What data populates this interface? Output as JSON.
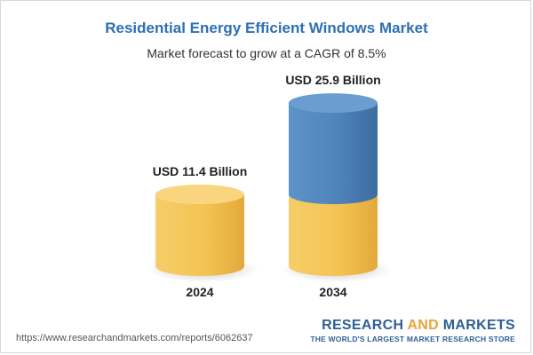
{
  "chart_data": {
    "type": "bar",
    "title": "Residential Energy Efficient Windows Market",
    "subtitle": "Market forecast to grow at a CAGR of 8.5%",
    "categories": [
      "2024",
      "2034"
    ],
    "values": [
      11.4,
      25.9
    ],
    "value_labels": [
      "USD 11.4 Billion",
      "USD 25.9 Billion"
    ],
    "unit": "USD Billion",
    "cagr": "8.5%",
    "colors": {
      "base": "#f2c04e",
      "growth": "#4f84bb",
      "title": "#2f6fb2"
    }
  },
  "footer": {
    "url": "https://www.researchandmarkets.com/reports/6062637",
    "brand_part1": "RESEARCH ",
    "brand_part2": "AND",
    "brand_part3": " MARKETS",
    "tagline": "THE WORLD'S LARGEST MARKET RESEARCH STORE"
  }
}
